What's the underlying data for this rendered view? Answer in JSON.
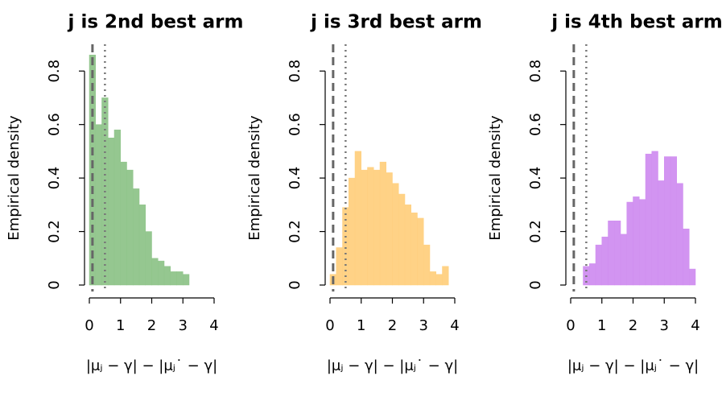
{
  "chart_data": [
    {
      "type": "histogram",
      "title": "j is 2nd best arm",
      "ylabel": "Empirical density",
      "xlabel": "|μⱼ − γ| − |μⱼ˙ − γ|",
      "bins": [
        0,
        0.2,
        0.4,
        0.6,
        0.8,
        1.0,
        1.2,
        1.4,
        1.6,
        1.8,
        2.0,
        2.2,
        2.4,
        2.6,
        2.8,
        3.0,
        3.2
      ],
      "values": [
        0.86,
        0.6,
        0.7,
        0.55,
        0.58,
        0.46,
        0.43,
        0.36,
        0.3,
        0.2,
        0.1,
        0.09,
        0.07,
        0.05,
        0.05,
        0.04
      ],
      "color": "#8fc48a",
      "xlim": [
        0,
        4
      ],
      "xticks": [
        0,
        1,
        2,
        3,
        4
      ],
      "ylim": [
        0,
        0.9
      ],
      "yticks": [
        0,
        0.2,
        0.4,
        0.6,
        0.8
      ],
      "reference_lines": [
        {
          "value": 0.1,
          "style": "dashed"
        },
        {
          "value": 0.5,
          "style": "dotted"
        }
      ]
    },
    {
      "type": "histogram",
      "title": "j is 3rd best arm",
      "ylabel": "Empirical density",
      "xlabel": "|μⱼ − γ| − |μⱼ˙ − γ|",
      "bins": [
        0,
        0.2,
        0.4,
        0.6,
        0.8,
        1.0,
        1.2,
        1.4,
        1.6,
        1.8,
        2.0,
        2.2,
        2.4,
        2.6,
        2.8,
        3.0,
        3.2,
        3.4,
        3.6,
        3.8
      ],
      "values": [
        0.04,
        0.14,
        0.29,
        0.4,
        0.5,
        0.43,
        0.44,
        0.43,
        0.46,
        0.42,
        0.38,
        0.34,
        0.3,
        0.27,
        0.25,
        0.15,
        0.05,
        0.04,
        0.07
      ],
      "color": "#ffd080",
      "xlim": [
        0,
        4
      ],
      "xticks": [
        0,
        1,
        2,
        3,
        4
      ],
      "ylim": [
        0,
        0.9
      ],
      "yticks": [
        0,
        0.2,
        0.4,
        0.6,
        0.8
      ],
      "reference_lines": [
        {
          "value": 0.1,
          "style": "dashed"
        },
        {
          "value": 0.5,
          "style": "dotted"
        }
      ]
    },
    {
      "type": "histogram",
      "title": "j is 4th best arm",
      "ylabel": "Empirical density",
      "xlabel": "|μⱼ − γ| − |μⱼ˙ − γ|",
      "bins": [
        0.4,
        0.6,
        0.8,
        1.0,
        1.2,
        1.4,
        1.6,
        1.8,
        2.0,
        2.2,
        2.4,
        2.6,
        2.8,
        3.0,
        3.2,
        3.4,
        3.6,
        3.8,
        4.0
      ],
      "values": [
        0.07,
        0.08,
        0.15,
        0.18,
        0.24,
        0.24,
        0.19,
        0.31,
        0.33,
        0.32,
        0.49,
        0.5,
        0.39,
        0.48,
        0.48,
        0.38,
        0.21,
        0.06
      ],
      "color": "#d08ef0",
      "xlim": [
        0,
        4
      ],
      "xticks": [
        0,
        1,
        2,
        3,
        4
      ],
      "ylim": [
        0,
        0.9
      ],
      "yticks": [
        0,
        0.2,
        0.4,
        0.6,
        0.8
      ],
      "reference_lines": [
        {
          "value": 0.1,
          "style": "dashed"
        },
        {
          "value": 0.5,
          "style": "dotted"
        }
      ]
    }
  ]
}
